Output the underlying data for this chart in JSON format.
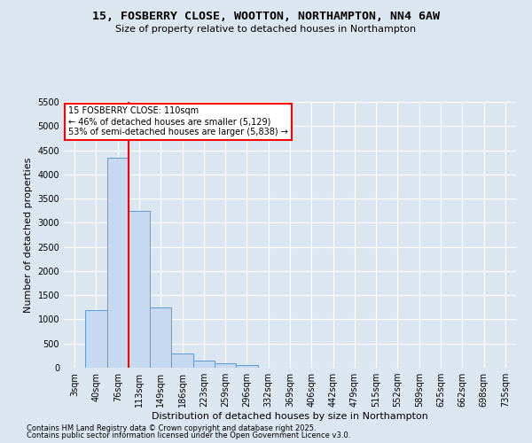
{
  "title1": "15, FOSBERRY CLOSE, WOOTTON, NORTHAMPTON, NN4 6AW",
  "title2": "Size of property relative to detached houses in Northampton",
  "xlabel": "Distribution of detached houses by size in Northampton",
  "ylabel": "Number of detached properties",
  "categories": [
    "3sqm",
    "40sqm",
    "76sqm",
    "113sqm",
    "149sqm",
    "186sqm",
    "223sqm",
    "259sqm",
    "296sqm",
    "332sqm",
    "369sqm",
    "406sqm",
    "442sqm",
    "479sqm",
    "515sqm",
    "552sqm",
    "589sqm",
    "625sqm",
    "662sqm",
    "698sqm",
    "735sqm"
  ],
  "values": [
    0,
    1200,
    4350,
    3250,
    1250,
    300,
    150,
    90,
    50,
    0,
    0,
    0,
    0,
    0,
    0,
    0,
    0,
    0,
    0,
    0,
    0
  ],
  "bar_color": "#c6d9f0",
  "bar_edge_color": "#5b9bd5",
  "vline_color": "red",
  "vline_pos": 2.5,
  "annotation_text": "15 FOSBERRY CLOSE: 110sqm\n← 46% of detached houses are smaller (5,129)\n53% of semi-detached houses are larger (5,838) →",
  "ylim": [
    0,
    5500
  ],
  "yticks": [
    0,
    500,
    1000,
    1500,
    2000,
    2500,
    3000,
    3500,
    4000,
    4500,
    5000,
    5500
  ],
  "footnote1": "Contains HM Land Registry data © Crown copyright and database right 2025.",
  "footnote2": "Contains public sector information licensed under the Open Government Licence v3.0.",
  "bg_color": "#dce6f1",
  "grid_color": "#ffffff",
  "title1_fontsize": 9.5,
  "title2_fontsize": 8,
  "xlabel_fontsize": 8,
  "ylabel_fontsize": 8,
  "tick_fontsize": 7,
  "annotation_fontsize": 7,
  "footnote_fontsize": 6
}
